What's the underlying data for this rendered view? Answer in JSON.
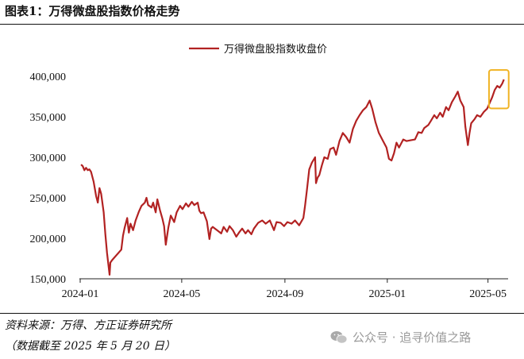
{
  "header": {
    "title": "图表1：万得微盘股指数价格走势"
  },
  "footer": {
    "source": "资料来源：万得、方正证券研究所",
    "note": "（数据截至 2025 年 5 月 20 日）",
    "watermark": "公众号 · 追寻价值之路"
  },
  "colors": {
    "line": "#b22222",
    "highlight": "#f0b323",
    "axis": "#222222"
  },
  "chart_data": {
    "type": "line",
    "series": [
      {
        "name": "万得微盘股指数收盘价",
        "values": [
          [
            "2024-01-02",
            291000
          ],
          [
            "2024-01-04",
            289000
          ],
          [
            "2024-01-06",
            284000
          ],
          [
            "2024-01-08",
            287000
          ],
          [
            "2024-01-10",
            284000
          ],
          [
            "2024-01-12",
            285000
          ],
          [
            "2024-01-14",
            282000
          ],
          [
            "2024-01-17",
            270000
          ],
          [
            "2024-01-20",
            252000
          ],
          [
            "2024-01-22",
            244000
          ],
          [
            "2024-01-24",
            262000
          ],
          [
            "2024-01-26",
            255000
          ],
          [
            "2024-01-29",
            232000
          ],
          [
            "2024-01-31",
            205000
          ],
          [
            "2024-02-02",
            182000
          ],
          [
            "2024-02-05",
            155000
          ],
          [
            "2024-02-06",
            170000
          ],
          [
            "2024-02-08",
            173000
          ],
          [
            "2024-02-19",
            186000
          ],
          [
            "2024-02-21",
            203000
          ],
          [
            "2024-02-23",
            213000
          ],
          [
            "2024-02-26",
            225000
          ],
          [
            "2024-02-28",
            207000
          ],
          [
            "2024-03-01",
            218000
          ],
          [
            "2024-03-04",
            210000
          ],
          [
            "2024-03-07",
            222000
          ],
          [
            "2024-03-11",
            233000
          ],
          [
            "2024-03-14",
            240000
          ],
          [
            "2024-03-18",
            244000
          ],
          [
            "2024-03-20",
            250000
          ],
          [
            "2024-03-22",
            241000
          ],
          [
            "2024-03-26",
            238000
          ],
          [
            "2024-03-28",
            244000
          ],
          [
            "2024-03-31",
            232000
          ],
          [
            "2024-04-02",
            248000
          ],
          [
            "2024-04-05",
            235000
          ],
          [
            "2024-04-08",
            224000
          ],
          [
            "2024-04-10",
            215000
          ],
          [
            "2024-04-12",
            192000
          ],
          [
            "2024-04-15",
            213000
          ],
          [
            "2024-04-18",
            228000
          ],
          [
            "2024-04-22",
            220000
          ],
          [
            "2024-04-25",
            232000
          ],
          [
            "2024-04-29",
            240000
          ],
          [
            "2024-05-02",
            236000
          ],
          [
            "2024-05-06",
            243000
          ],
          [
            "2024-05-09",
            239000
          ],
          [
            "2024-05-13",
            245000
          ],
          [
            "2024-05-16",
            241000
          ],
          [
            "2024-05-20",
            244000
          ],
          [
            "2024-05-22",
            234000
          ],
          [
            "2024-05-24",
            231000
          ],
          [
            "2024-05-27",
            232000
          ],
          [
            "2024-05-31",
            221000
          ],
          [
            "2024-06-03",
            199000
          ],
          [
            "2024-06-05",
            212000
          ],
          [
            "2024-06-07",
            214000
          ],
          [
            "2024-06-12",
            210000
          ],
          [
            "2024-06-17",
            206000
          ],
          [
            "2024-06-20",
            214000
          ],
          [
            "2024-06-24",
            208000
          ],
          [
            "2024-06-27",
            215000
          ],
          [
            "2024-07-01",
            210000
          ],
          [
            "2024-07-05",
            202000
          ],
          [
            "2024-07-09",
            208000
          ],
          [
            "2024-07-12",
            212000
          ],
          [
            "2024-07-16",
            206000
          ],
          [
            "2024-07-19",
            210000
          ],
          [
            "2024-07-23",
            205000
          ],
          [
            "2024-07-26",
            212000
          ],
          [
            "2024-07-31",
            219000
          ],
          [
            "2024-08-05",
            222000
          ],
          [
            "2024-08-09",
            218000
          ],
          [
            "2024-08-14",
            222000
          ],
          [
            "2024-08-19",
            210000
          ],
          [
            "2024-08-22",
            220000
          ],
          [
            "2024-08-27",
            219000
          ],
          [
            "2024-08-31",
            215000
          ],
          [
            "2024-09-04",
            220000
          ],
          [
            "2024-09-09",
            218000
          ],
          [
            "2024-09-13",
            222000
          ],
          [
            "2024-09-18",
            216000
          ],
          [
            "2024-09-23",
            225000
          ],
          [
            "2024-09-25",
            240000
          ],
          [
            "2024-09-27",
            258000
          ],
          [
            "2024-09-30",
            285000
          ],
          [
            "2024-10-03",
            293000
          ],
          [
            "2024-10-07",
            300000
          ],
          [
            "2024-10-08",
            268000
          ],
          [
            "2024-10-10",
            275000
          ],
          [
            "2024-10-12",
            278000
          ],
          [
            "2024-10-15",
            290000
          ],
          [
            "2024-10-18",
            300000
          ],
          [
            "2024-10-22",
            298000
          ],
          [
            "2024-10-25",
            310000
          ],
          [
            "2024-10-29",
            312000
          ],
          [
            "2024-11-01",
            303000
          ],
          [
            "2024-11-05",
            320000
          ],
          [
            "2024-11-09",
            330000
          ],
          [
            "2024-11-13",
            325000
          ],
          [
            "2024-11-17",
            318000
          ],
          [
            "2024-11-21",
            335000
          ],
          [
            "2024-11-25",
            345000
          ],
          [
            "2024-11-29",
            352000
          ],
          [
            "2024-12-03",
            358000
          ],
          [
            "2024-12-07",
            362000
          ],
          [
            "2024-12-11",
            370000
          ],
          [
            "2024-12-14",
            360000
          ],
          [
            "2024-12-18",
            343000
          ],
          [
            "2024-12-22",
            330000
          ],
          [
            "2024-12-27",
            320000
          ],
          [
            "2024-12-31",
            312000
          ],
          [
            "2025-01-03",
            298000
          ],
          [
            "2025-01-06",
            296000
          ],
          [
            "2025-01-09",
            305000
          ],
          [
            "2025-01-12",
            318000
          ],
          [
            "2025-01-15",
            312000
          ],
          [
            "2025-01-20",
            322000
          ],
          [
            "2025-01-24",
            320000
          ],
          [
            "2025-02-03",
            322000
          ],
          [
            "2025-02-07",
            331000
          ],
          [
            "2025-02-11",
            330000
          ],
          [
            "2025-02-14",
            336000
          ],
          [
            "2025-02-19",
            340000
          ],
          [
            "2025-02-22",
            345000
          ],
          [
            "2025-02-26",
            352000
          ],
          [
            "2025-03-01",
            348000
          ],
          [
            "2025-03-05",
            355000
          ],
          [
            "2025-03-08",
            350000
          ],
          [
            "2025-03-12",
            362000
          ],
          [
            "2025-03-15",
            358000
          ],
          [
            "2025-03-19",
            368000
          ],
          [
            "2025-03-23",
            375000
          ],
          [
            "2025-03-26",
            381000
          ],
          [
            "2025-03-29",
            370000
          ],
          [
            "2025-04-02",
            362000
          ],
          [
            "2025-04-04",
            338000
          ],
          [
            "2025-04-07",
            315000
          ],
          [
            "2025-04-09",
            330000
          ],
          [
            "2025-04-11",
            342000
          ],
          [
            "2025-04-15",
            347000
          ],
          [
            "2025-04-18",
            352000
          ],
          [
            "2025-04-22",
            350000
          ],
          [
            "2025-04-26",
            356000
          ],
          [
            "2025-04-30",
            360000
          ],
          [
            "2025-05-06",
            374000
          ],
          [
            "2025-05-09",
            383000
          ],
          [
            "2025-05-12",
            388000
          ],
          [
            "2025-05-15",
            386000
          ],
          [
            "2025-05-18",
            391000
          ],
          [
            "2025-05-20",
            396000
          ]
        ]
      }
    ],
    "xlim": [
      "2024-01-01",
      "2025-05-25"
    ],
    "ylim": [
      150000,
      400000
    ],
    "xticks": [
      "2024-01",
      "2024-05",
      "2024-09",
      "2025-01",
      "2025-05"
    ],
    "yticks": [
      "150,000",
      "200,000",
      "250,000",
      "300,000",
      "350,000",
      "400,000"
    ],
    "legend": "top-center",
    "grid": false,
    "highlight": {
      "from": "2025-05-06",
      "to": "2025-05-20"
    }
  }
}
